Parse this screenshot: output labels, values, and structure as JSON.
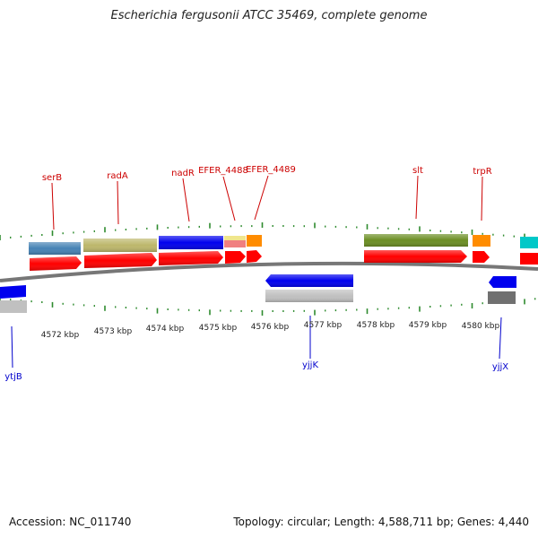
{
  "title": "Escherichia fergusonii ATCC 35469, complete genome",
  "footer": {
    "accession": "Accession: NC_011740",
    "stats": "Topology: circular; Length: 4,588,711 bp; Genes: 4,440"
  },
  "scale_labels": [
    "4572 kbp",
    "4573 kbp",
    "4574 kbp",
    "4575 kbp",
    "4576 kbp",
    "4577 kbp",
    "4578 kbp",
    "4579 kbp",
    "4580 kbp"
  ],
  "gene_labels_top": [
    "serB",
    "radA",
    "nadR",
    "EFER_4488",
    "EFER_4489",
    "slt",
    "trpR"
  ],
  "gene_labels_bottom": [
    "ytjB",
    "yjjK",
    "yjjX"
  ],
  "colors": {
    "label_top": "#cc0000",
    "label_bottom": "#0000cc",
    "cds": "#ff0000",
    "backbone": "#777777",
    "ticks": "#2e8b2e",
    "steelblue": "#4682b4",
    "khaki": "#bdb76b",
    "blue": "#0000ee",
    "olive": "#6b8e23",
    "orange": "#ff8c00",
    "cyan": "#00c8c8",
    "pink": "#f08080",
    "yellow": "#f0e68c",
    "grey": "#c0c0c0",
    "darkgrey": "#707070"
  }
}
